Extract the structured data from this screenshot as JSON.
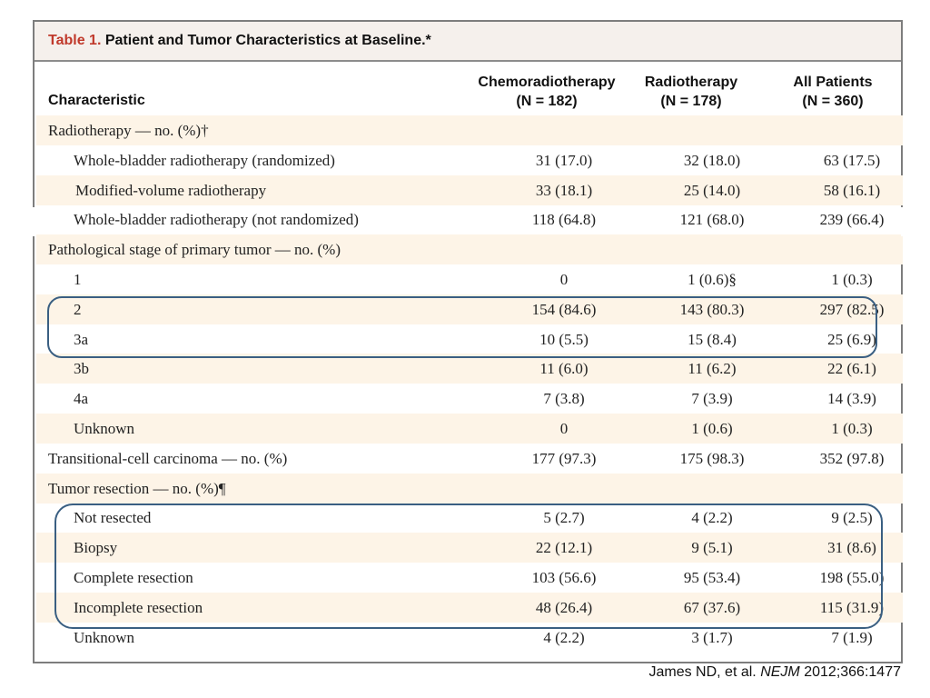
{
  "title": {
    "label": "Table 1.",
    "text": "Patient and Tumor Characteristics at Baseline.*"
  },
  "columns": {
    "characteristic": "Characteristic",
    "chemo_line1": "Chemoradiotherapy",
    "chemo_line2": "(N = 182)",
    "radio_line1": "Radiotherapy",
    "radio_line2": "(N = 178)",
    "all_line1": "All Patients",
    "all_line2": "(N = 360)"
  },
  "rows": [
    {
      "label": "Radiotherapy — no. (%)†",
      "a": "",
      "b": "",
      "c": "",
      "indent": 0
    },
    {
      "label": "Whole-bladder radiotherapy (randomized)",
      "a": "31 (17.0)",
      "b": "32 (18.0)",
      "c": "63 (17.5)",
      "indent": 1
    },
    {
      "label": "Modified-volume radiotherapy",
      "a": "33 (18.1)",
      "b": "25 (14.0)",
      "c": "58 (16.1)",
      "indent": 2
    },
    {
      "label": "Whole-bladder radiotherapy (not randomized)",
      "a": "118 (64.8)",
      "b": "121 (68.0)",
      "c": "239 (66.4)",
      "indent": 1
    },
    {
      "label": "Pathological stage of primary tumor — no. (%)",
      "a": "",
      "b": "",
      "c": "",
      "indent": 0
    },
    {
      "label": "1",
      "a": "0",
      "b": "1 (0.6)§",
      "c": "1 (0.3)",
      "indent": 1
    },
    {
      "label": "2",
      "a": "154 (84.6)",
      "b": "143 (80.3)",
      "c": "297 (82.5)",
      "indent": 1
    },
    {
      "label": "3a",
      "a": "10 (5.5)",
      "b": "15 (8.4)",
      "c": "25 (6.9)",
      "indent": 1
    },
    {
      "label": "3b",
      "a": "11 (6.0)",
      "b": "11 (6.2)",
      "c": "22 (6.1)",
      "indent": 1
    },
    {
      "label": "4a",
      "a": "7 (3.8)",
      "b": "7 (3.9)",
      "c": "14 (3.9)",
      "indent": 1
    },
    {
      "label": "Unknown",
      "a": "0",
      "b": "1 (0.6)",
      "c": "1 (0.3)",
      "indent": 1
    },
    {
      "label": "Transitional-cell carcinoma — no. (%)",
      "a": "177 (97.3)",
      "b": "175 (98.3)",
      "c": "352 (97.8)",
      "indent": 0
    },
    {
      "label": "Tumor resection — no. (%)¶",
      "a": "",
      "b": "",
      "c": "",
      "indent": 0
    },
    {
      "label": "Not resected",
      "a": "5 (2.7)",
      "b": "4 (2.2)",
      "c": "9 (2.5)",
      "indent": 1
    },
    {
      "label": "Biopsy",
      "a": "22 (12.1)",
      "b": "9 (5.1)",
      "c": "31 (8.6)",
      "indent": 1
    },
    {
      "label": "Complete resection",
      "a": "103 (56.6)",
      "b": "95 (53.4)",
      "c": "198 (55.0)",
      "indent": 1
    },
    {
      "label": "Incomplete resection",
      "a": "48 (26.4)",
      "b": "67 (37.6)",
      "c": "115 (31.9)",
      "indent": 1
    },
    {
      "label": "Unknown",
      "a": "4 (2.2)",
      "b": "3 (1.7)",
      "c": "7 (1.9)",
      "indent": 1
    }
  ],
  "citation": {
    "authors": "James ND, et al.",
    "journal": "NEJM",
    "ref": "2012;366:1477"
  },
  "colors": {
    "title_label": "#c0392b",
    "row_shade": "#fdf4e7",
    "highlight_border": "#3a5f82"
  }
}
